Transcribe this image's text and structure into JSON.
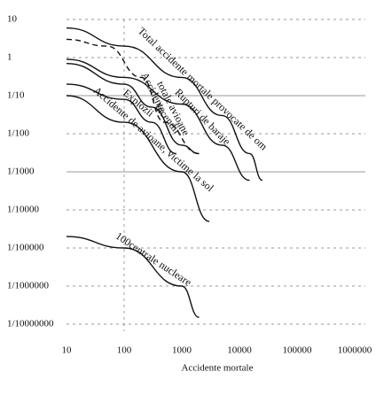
{
  "chart_data": {
    "type": "line",
    "x_label": "Accidente mortale",
    "log_x": true,
    "log_y": true,
    "grid": true,
    "xlim": [
      10,
      1000000
    ],
    "xticks": [
      10,
      100,
      1000,
      10000,
      100000,
      1000000
    ],
    "ylim": [
      1e-07,
      10
    ],
    "yticks": [
      10,
      1,
      {
        "value": 0.1,
        "label": "1/10"
      },
      {
        "value": 0.01,
        "label": "1/100"
      },
      {
        "value": 0.001,
        "label": "1/1000"
      },
      {
        "value": 0.0001,
        "label": "1/10000"
      },
      {
        "value": 1e-05,
        "label": "1/100000"
      },
      {
        "value": 1e-06,
        "label": "1/1000000"
      },
      {
        "value": 1e-07,
        "label": "1/10000000"
      }
    ],
    "annotations": [
      "totale avioane"
    ],
    "series": [
      {
        "name": "Total accidente mortale provocate de om",
        "color": "#111",
        "x": [
          10,
          100,
          1000,
          5000,
          15000,
          25000
        ],
        "values": [
          6,
          2,
          0.3,
          0.03,
          0.003,
          0.0006
        ]
      },
      {
        "name": "Rupturi de baraje",
        "color": "#111",
        "x": [
          10,
          100,
          1000,
          5000,
          15000
        ],
        "values": [
          0.9,
          0.3,
          0.06,
          0.005,
          0.0006
        ]
      },
      {
        "name": "Incendii",
        "color": "#111",
        "x": [
          10,
          100,
          300,
          1000,
          2000
        ],
        "values": [
          0.7,
          0.2,
          0.05,
          0.005,
          0.003
        ]
      },
      {
        "name": "Explozii",
        "color": "#111",
        "x": [
          10,
          100,
          300,
          800
        ],
        "values": [
          0.2,
          0.08,
          0.02,
          0.003
        ]
      },
      {
        "name": "Accidente de avioane, victime la sol",
        "color": "#111",
        "x": [
          10,
          100,
          1000,
          3000
        ],
        "values": [
          0.1,
          0.02,
          0.001,
          5e-05
        ]
      },
      {
        "name": "Accidente",
        "color": "#111",
        "dashed": true,
        "x": [
          10,
          50,
          200,
          500,
          2000
        ],
        "values": [
          3,
          2,
          0.3,
          0.02,
          0.003
        ]
      },
      {
        "name": "100centrale nucleare",
        "color": "#111",
        "x": [
          10,
          100,
          1000,
          2000
        ],
        "values": [
          2e-05,
          1e-05,
          1e-06,
          1.5e-07
        ]
      }
    ]
  }
}
